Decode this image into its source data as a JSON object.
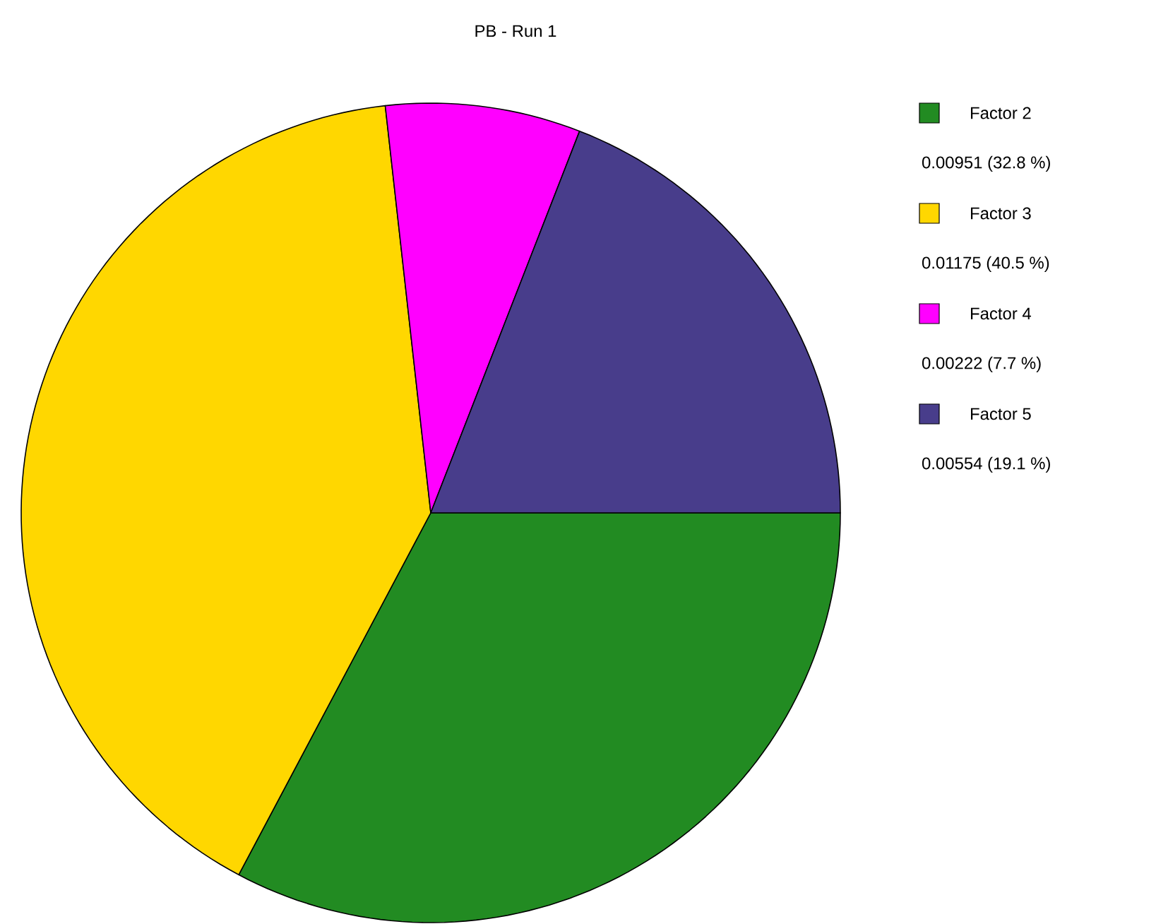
{
  "chart_data": {
    "type": "pie",
    "title": "PB - Run 1",
    "categories": [
      "Factor 2",
      "Factor 3",
      "Factor 4",
      "Factor 5"
    ],
    "values": [
      32.8,
      40.5,
      7.7,
      19.1
    ],
    "colors": [
      "#228b22",
      "#ffd700",
      "#ff00ff",
      "#483d8b"
    ],
    "annotations": [
      "0.00951  (32.8 %)",
      "0.01175  (40.5 %)",
      "0.00222  (7.7 %)",
      "0.00554  (19.1 %)"
    ],
    "legend": "top right"
  }
}
